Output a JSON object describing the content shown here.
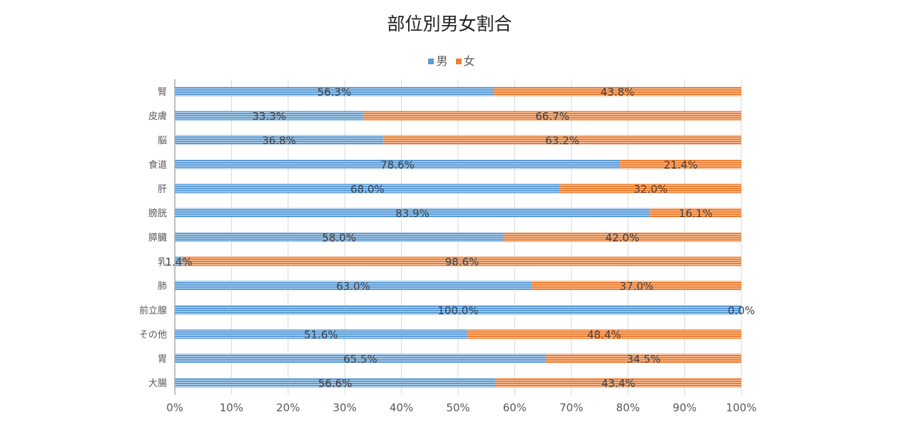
{
  "chart_data": {
    "type": "bar",
    "orientation": "horizontal",
    "stacked": "percent",
    "title": "部位別男女割合",
    "categories": [
      "腎",
      "皮膚",
      "脳",
      "食道",
      "肝",
      "膀胱",
      "膵臓",
      "乳",
      "肺",
      "前立腺",
      "その他",
      "胃",
      "大腸"
    ],
    "series": [
      {
        "name": "男",
        "color": "#5b9bd5",
        "values": [
          56.3,
          33.3,
          36.8,
          78.6,
          68.0,
          83.9,
          58.0,
          1.4,
          63.0,
          100.0,
          51.6,
          65.5,
          56.6
        ]
      },
      {
        "name": "女",
        "color": "#ed7d31",
        "values": [
          43.8,
          66.7,
          63.2,
          21.4,
          32.0,
          16.1,
          42.0,
          98.6,
          37.0,
          0.0,
          48.4,
          34.5,
          43.4
        ]
      }
    ],
    "xlim": [
      0,
      100
    ],
    "x_ticks": [
      "0%",
      "10%",
      "20%",
      "30%",
      "40%",
      "50%",
      "60%",
      "70%",
      "80%",
      "90%",
      "100%"
    ],
    "grid": true,
    "legend_position": "top",
    "data_labels": true,
    "fill_pattern": "horizontal-stripes"
  }
}
